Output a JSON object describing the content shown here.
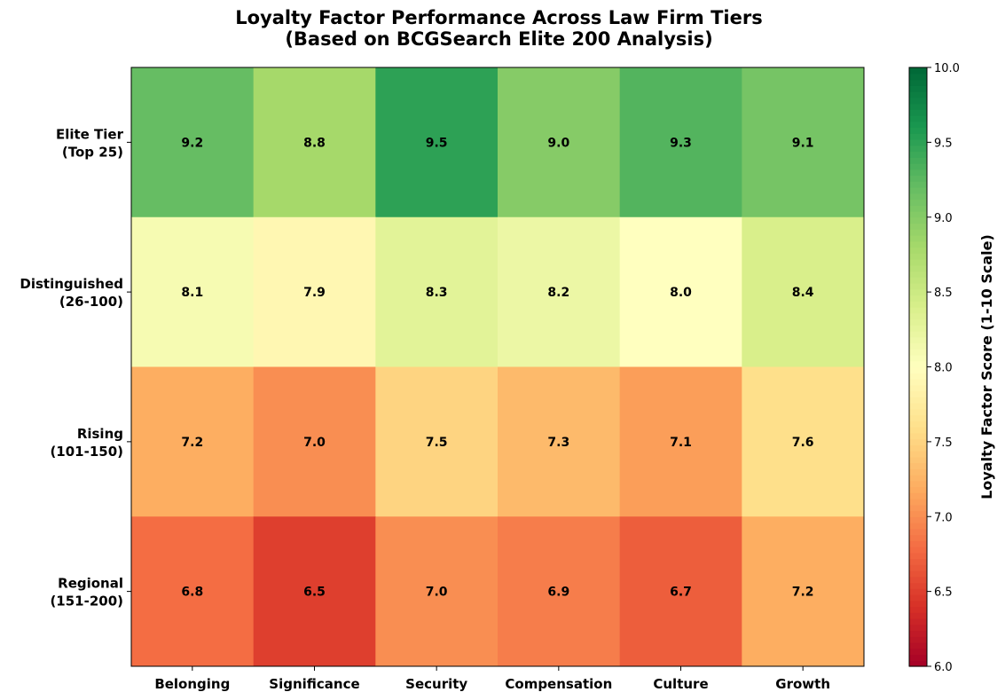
{
  "chart_data": {
    "type": "heatmap",
    "title": "Loyalty Factor Performance Across Law Firm Tiers",
    "subtitle": "(Based on BCGSearch Elite 200 Analysis)",
    "x_categories": [
      "Belonging",
      "Significance",
      "Security",
      "Compensation",
      "Culture",
      "Growth"
    ],
    "y_categories": [
      [
        "Elite Tier",
        "(Top 25)"
      ],
      [
        "Distinguished",
        "(26-100)"
      ],
      [
        "Rising",
        "(101-150)"
      ],
      [
        "Regional",
        "(151-200)"
      ]
    ],
    "values": [
      [
        9.2,
        8.8,
        9.5,
        9.0,
        9.3,
        9.1
      ],
      [
        8.1,
        7.9,
        8.3,
        8.2,
        8.0,
        8.4
      ],
      [
        7.2,
        7.0,
        7.5,
        7.3,
        7.1,
        7.6
      ],
      [
        6.8,
        6.5,
        7.0,
        6.9,
        6.7,
        7.2
      ]
    ],
    "colormap": "RdYlGn",
    "colorbar": {
      "label": "Loyalty Factor Score (1-10 Scale)",
      "range": [
        6.0,
        10.0
      ],
      "ticks": [
        "6.0",
        "6.5",
        "7.0",
        "7.5",
        "8.0",
        "8.5",
        "9.0",
        "9.5",
        "10.0"
      ]
    }
  }
}
